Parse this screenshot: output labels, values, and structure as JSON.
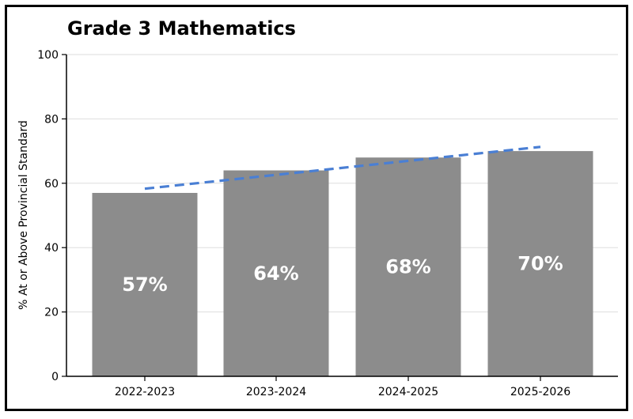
{
  "chart_data": {
    "type": "bar",
    "title": "Grade 3 Mathematics",
    "xlabel": "",
    "ylabel": "% At or Above Provincial Standard",
    "categories": [
      "2022-2023",
      "2023-2024",
      "2024-2025",
      "2025-2026"
    ],
    "values": [
      57,
      64,
      68,
      70
    ],
    "data_labels": [
      "57%",
      "64%",
      "68%",
      "70%"
    ],
    "ylim": [
      0,
      100
    ],
    "yticks": [
      0,
      20,
      40,
      60,
      80,
      100
    ],
    "grid": "horizontal",
    "trendline": {
      "style": "dashed",
      "start": 58.3,
      "end": 71.3
    },
    "colors": {
      "bar": "#8c8c8c",
      "trend": "#4a7fd4",
      "label": "#ffffff"
    }
  }
}
